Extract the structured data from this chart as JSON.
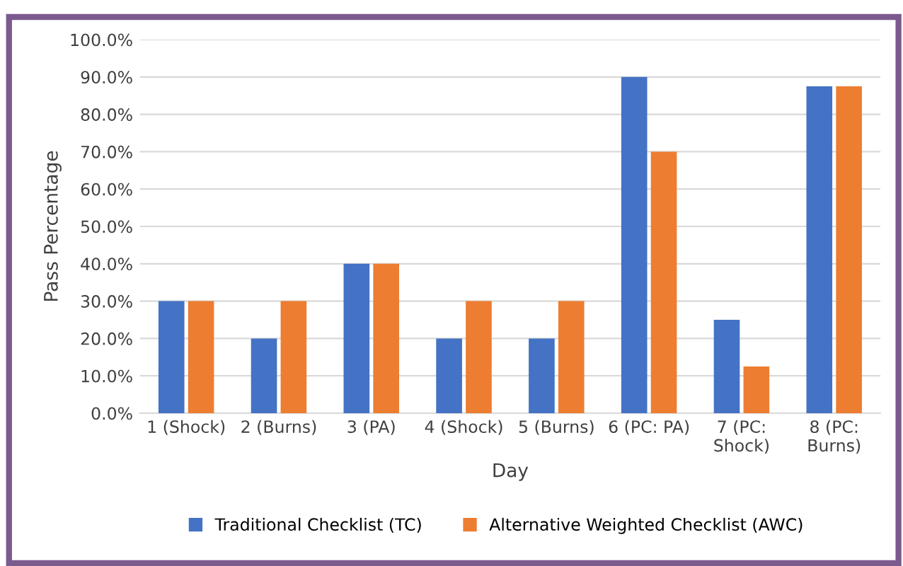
{
  "chart_data": {
    "type": "bar",
    "xlabel": "Day",
    "ylabel": "Pass Percentage",
    "categories": [
      "1 (Shock)",
      "2 (Burns)",
      "3 (PA)",
      "4 (Shock)",
      "5 (Burns)",
      "6 (PC: PA)",
      "7 (PC:\nShock)",
      "8 (PC:\nBurns)"
    ],
    "series": [
      {
        "name": "Traditional Checklist (TC)",
        "color": "#4472c4",
        "values": [
          30,
          20,
          40,
          20,
          20,
          90,
          25,
          87.5
        ]
      },
      {
        "name": "Alternative Weighted Checklist (AWC)",
        "color": "#ed7d31",
        "values": [
          30,
          30,
          40,
          30,
          30,
          70,
          12.5,
          87.5
        ]
      }
    ],
    "ylim": [
      0,
      100
    ],
    "yticks": [
      {
        "value": 0,
        "label": "0.0%"
      },
      {
        "value": 10,
        "label": "10.0%"
      },
      {
        "value": 20,
        "label": "20.0%"
      },
      {
        "value": 30,
        "label": "30.0%"
      },
      {
        "value": 40,
        "label": "40.0%"
      },
      {
        "value": 50,
        "label": "50.0%"
      },
      {
        "value": 60,
        "label": "60.0%"
      },
      {
        "value": 70,
        "label": "70.0%"
      },
      {
        "value": 80,
        "label": "80.0%"
      },
      {
        "value": 90,
        "label": "90.0%"
      },
      {
        "value": 100,
        "label": "100.0%"
      }
    ],
    "grid": "y",
    "legend": "bottom"
  }
}
